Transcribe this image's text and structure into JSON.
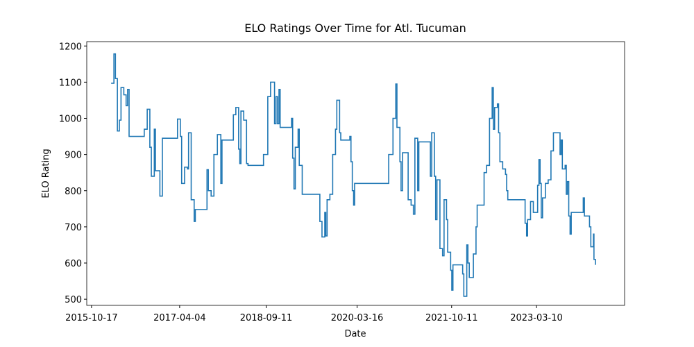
{
  "chart_data": {
    "type": "line",
    "drawstyle": "steps-post",
    "title": "ELO Ratings Over Time for Atl. Tucuman",
    "xlabel": "Date",
    "ylabel": "ELO Rating",
    "xlim": [
      "2015-09-18",
      "2024-08-26"
    ],
    "ylim": [
      483,
      1212
    ],
    "xticks": [
      "2015-10-17",
      "2017-04-04",
      "2018-09-11",
      "2020-03-16",
      "2021-10-11",
      "2023-03-10"
    ],
    "yticks": [
      500,
      600,
      700,
      800,
      900,
      1000,
      1100,
      1200
    ],
    "x": [
      "2016-02-13",
      "2016-03-01",
      "2016-03-10",
      "2016-03-22",
      "2016-04-03",
      "2016-04-13",
      "2016-04-30",
      "2016-05-14",
      "2016-05-23",
      "2016-06-01",
      "2016-09-01",
      "2016-09-19",
      "2016-10-05",
      "2016-10-14",
      "2016-11-01",
      "2016-11-08",
      "2016-12-05",
      "2016-12-20",
      "2017-03-22",
      "2017-04-08",
      "2017-04-16",
      "2017-05-04",
      "2017-05-21",
      "2017-05-28",
      "2017-06-13",
      "2017-07-01",
      "2017-07-08",
      "2017-09-17",
      "2017-09-25",
      "2017-10-12",
      "2017-10-29",
      "2017-11-19",
      "2017-12-10",
      "2017-12-17",
      "2018-02-24",
      "2018-03-11",
      "2018-03-28",
      "2018-04-04",
      "2018-04-11",
      "2018-04-28",
      "2018-05-15",
      "2018-05-24",
      "2018-08-26",
      "2018-09-21",
      "2018-10-08",
      "2018-11-01",
      "2018-11-10",
      "2018-11-19",
      "2018-11-28",
      "2018-12-05",
      "2019-02-12",
      "2019-02-19",
      "2019-02-27",
      "2019-03-07",
      "2019-03-24",
      "2019-03-31",
      "2019-04-18",
      "2019-08-03",
      "2019-08-16",
      "2019-09-02",
      "2019-09-08",
      "2019-09-16",
      "2019-10-03",
      "2019-10-20",
      "2019-11-06",
      "2019-11-14",
      "2019-12-01",
      "2019-12-08",
      "2020-02-01",
      "2020-02-08",
      "2020-02-16",
      "2020-02-24",
      "2020-03-01",
      "2020-09-24",
      "2020-10-20",
      "2020-11-06",
      "2020-11-13",
      "2020-12-01",
      "2020-12-08",
      "2020-12-17",
      "2021-01-20",
      "2021-02-07",
      "2021-02-21",
      "2021-03-02",
      "2021-03-19",
      "2021-03-26",
      "2021-06-04",
      "2021-06-12",
      "2021-06-28",
      "2021-07-06",
      "2021-07-14",
      "2021-08-01",
      "2021-08-17",
      "2021-08-26",
      "2021-09-10",
      "2021-09-17",
      "2021-10-05",
      "2021-10-12",
      "2021-10-19",
      "2021-12-17",
      "2021-12-24",
      "2022-01-11",
      "2022-01-18",
      "2022-01-26",
      "2022-02-20",
      "2022-03-08",
      "2022-03-15",
      "2022-04-26",
      "2022-05-11",
      "2022-05-29",
      "2022-06-14",
      "2022-06-21",
      "2022-06-29",
      "2022-07-16",
      "2022-07-23",
      "2022-07-31",
      "2022-08-17",
      "2022-09-03",
      "2022-09-10",
      "2022-09-17",
      "2022-12-24",
      "2022-12-31",
      "2023-01-09",
      "2023-01-15",
      "2023-02-02",
      "2023-02-19",
      "2023-03-17",
      "2023-03-25",
      "2023-04-01",
      "2023-04-08",
      "2023-04-16",
      "2023-05-03",
      "2023-05-20",
      "2023-06-06",
      "2023-06-21",
      "2023-07-31",
      "2023-08-07",
      "2023-08-14",
      "2023-08-31",
      "2023-09-07",
      "2023-09-14",
      "2023-09-22",
      "2023-09-30",
      "2023-10-07",
      "2023-12-19",
      "2023-12-26",
      "2024-01-26",
      "2024-02-03",
      "2024-02-19",
      "2024-02-22",
      "2024-03-02"
    ],
    "series": [
      {
        "color": "#1f77b4",
        "values": [
          1097,
          1178,
          1110,
          965,
          995,
          1085,
          1065,
          1035,
          1080,
          950,
          970,
          1025,
          920,
          840,
          970,
          855,
          785,
          945,
          998,
          950,
          820,
          865,
          860,
          960,
          775,
          715,
          748,
          858,
          800,
          785,
          900,
          955,
          820,
          940,
          1010,
          1030,
          915,
          875,
          1020,
          995,
          875,
          870,
          900,
          1060,
          1100,
          985,
          1060,
          985,
          1080,
          975,
          1000,
          890,
          805,
          920,
          970,
          870,
          790,
          715,
          672,
          740,
          675,
          775,
          790,
          900,
          970,
          1050,
          960,
          940,
          950,
          880,
          800,
          760,
          820,
          900,
          1000,
          1095,
          975,
          880,
          800,
          905,
          775,
          760,
          735,
          945,
          800,
          935,
          840,
          960,
          840,
          720,
          830,
          640,
          620,
          775,
          720,
          630,
          580,
          525,
          595,
          570,
          508,
          650,
          600,
          560,
          625,
          700,
          760,
          850,
          870,
          1000,
          1085,
          970,
          1030,
          1040,
          960,
          880,
          860,
          845,
          800,
          775,
          775,
          710,
          675,
          720,
          770,
          740,
          815,
          886,
          820,
          725,
          780,
          820,
          830,
          910,
          960,
          900,
          940,
          860,
          870,
          790,
          825,
          730,
          680,
          740,
          780,
          730,
          700,
          645,
          680,
          610,
          595
        ]
      }
    ]
  }
}
